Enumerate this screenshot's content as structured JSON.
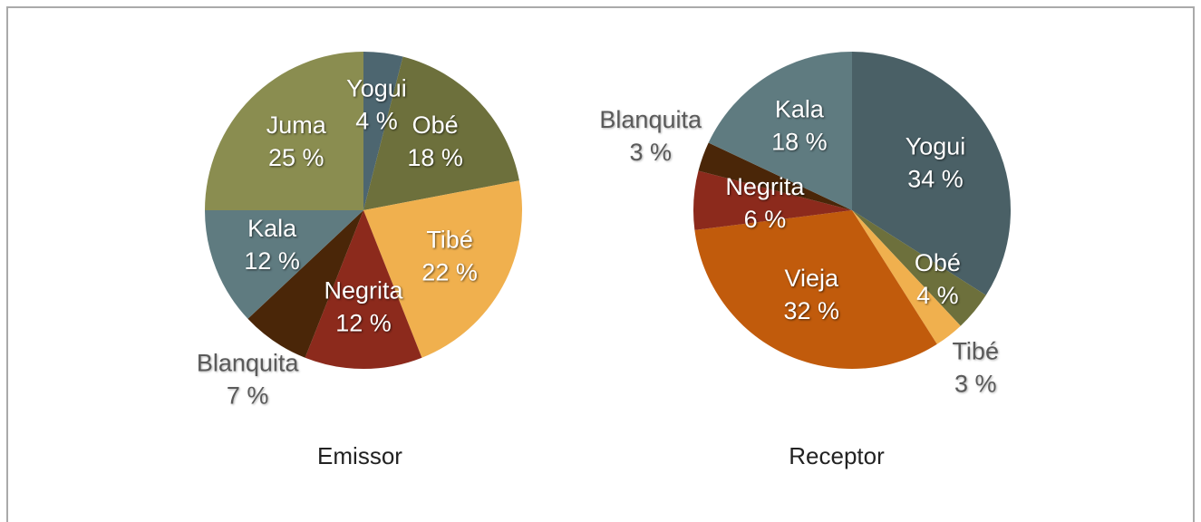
{
  "chart_data": [
    {
      "type": "pie",
      "title": "Emissor",
      "categories": [
        "Yogui",
        "Obé",
        "Tibé",
        "Negrita",
        "Blanquita",
        "Kala",
        "Juma"
      ],
      "values": [
        4,
        18,
        22,
        12,
        7,
        12,
        25
      ],
      "value_labels": [
        "4 %",
        "18 %",
        "22 %",
        "12 %",
        "7 %",
        "12 %",
        "25 %"
      ],
      "colors": [
        "#4d6670",
        "#6d703c",
        "#f0b04e",
        "#8c2a1c",
        "#4a2608",
        "#5f7b80",
        "#8a8d50"
      ]
    },
    {
      "type": "pie",
      "title": "Receptor",
      "categories": [
        "Yogui",
        "Obé",
        "Tibé",
        "Vieja",
        "Negrita",
        "Blanquita",
        "Kala"
      ],
      "values": [
        34,
        4,
        3,
        32,
        6,
        3,
        18
      ],
      "value_labels": [
        "34 %",
        "4 %",
        "3 %",
        "32 %",
        "6 %",
        "3 %",
        "18 %"
      ],
      "colors": [
        "#4a6066",
        "#6d703c",
        "#f0b04e",
        "#c15b0c",
        "#8c2a1c",
        "#4a2608",
        "#5f7b80"
      ]
    }
  ]
}
